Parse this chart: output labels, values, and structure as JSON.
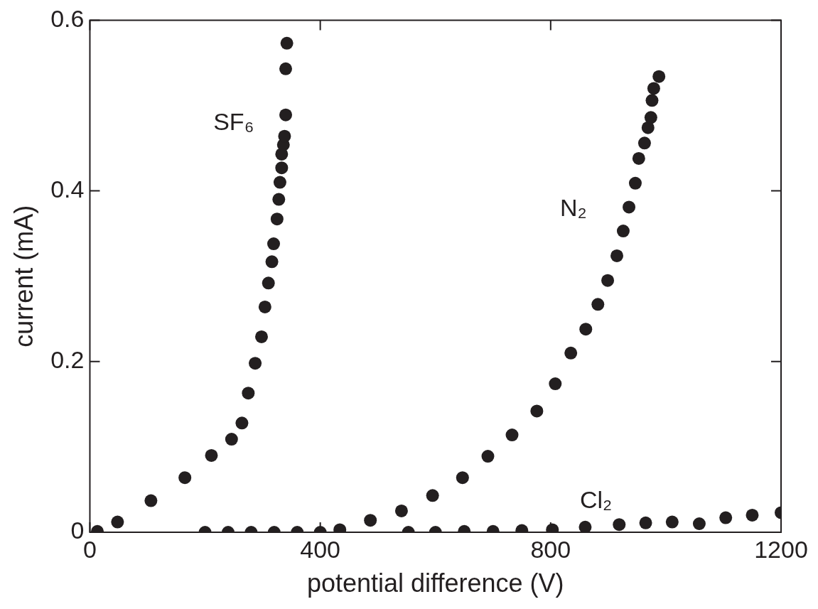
{
  "chart_data": {
    "type": "scatter",
    "xlabel": "potential difference (V)",
    "ylabel": "current (mA)",
    "xlim": [
      0,
      1200
    ],
    "ylim": [
      0,
      0.6
    ],
    "xticks": [
      0,
      400,
      800,
      1200
    ],
    "yticks": [
      0,
      0.2,
      0.4,
      0.6
    ],
    "grid": false,
    "legend": false,
    "marker": "circle",
    "series": [
      {
        "color": "#231f20",
        "x": [
          13,
          48,
          106,
          165,
          211,
          246,
          264,
          275,
          287,
          298,
          304,
          310,
          316,
          319,
          325,
          328,
          330,
          333,
          333,
          336,
          338,
          340,
          340,
          342
        ],
        "values": [
          0.001,
          0.012,
          0.037,
          0.064,
          0.09,
          0.109,
          0.128,
          0.163,
          0.198,
          0.229,
          0.264,
          0.292,
          0.317,
          0.338,
          0.367,
          0.39,
          0.41,
          0.427,
          0.443,
          0.454,
          0.464,
          0.489,
          0.543,
          0.573
        ]
      },
      {
        "color": "#231f20",
        "x": [
          200,
          240,
          280,
          320,
          360,
          400,
          434,
          487,
          541,
          595,
          647,
          691,
          733,
          776,
          808,
          835,
          861,
          882,
          899,
          915,
          926,
          936,
          947,
          953,
          963,
          969,
          974,
          976,
          979,
          988
        ],
        "values": [
          0,
          0,
          0,
          0,
          0,
          0,
          0.003,
          0.014,
          0.025,
          0.043,
          0.064,
          0.089,
          0.114,
          0.142,
          0.174,
          0.21,
          0.238,
          0.267,
          0.295,
          0.324,
          0.353,
          0.381,
          0.409,
          0.438,
          0.456,
          0.474,
          0.486,
          0.506,
          0.52,
          0.534
        ]
      },
      {
        "color": "#231f20",
        "x": [
          553,
          600,
          650,
          700,
          750,
          803,
          860,
          919,
          965,
          1011,
          1058,
          1104,
          1150,
          1200
        ],
        "values": [
          0,
          0,
          0.001,
          0.001,
          0.002,
          0.003,
          0.006,
          0.009,
          0.011,
          0.012,
          0.01,
          0.017,
          0.02,
          0.023
        ]
      }
    ],
    "annotations": [
      {
        "text": "SF₆",
        "x": 336,
        "y": 0.454
      },
      {
        "text": "N₂",
        "x": 926,
        "y": 0.353
      },
      {
        "text": "Cl₂",
        "x": 965,
        "y": 0.011
      }
    ]
  }
}
